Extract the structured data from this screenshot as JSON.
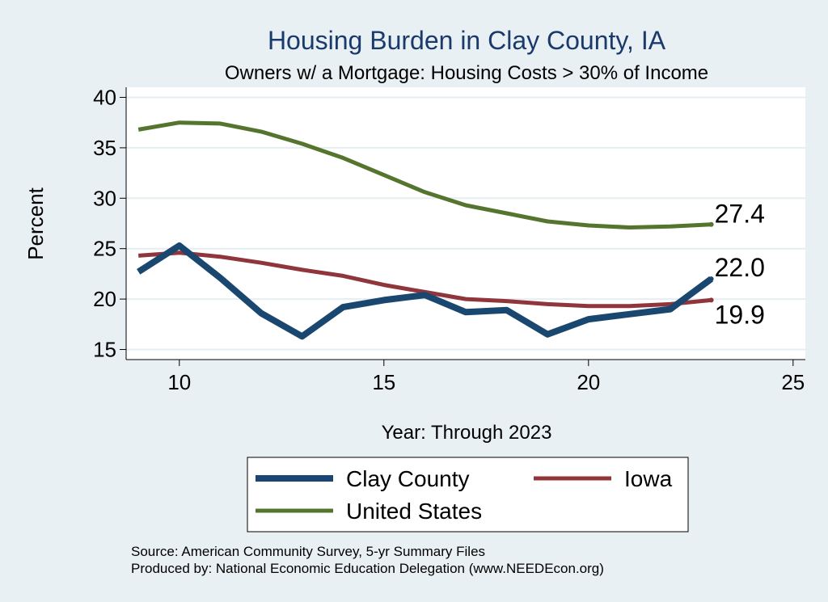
{
  "chart_data": {
    "type": "line",
    "title": "Housing Burden in Clay County, IA",
    "subtitle": "Owners w/ a Mortgage: Housing Costs > 30% of Income",
    "xlabel": "Year: Through 2023",
    "ylabel": "Percent",
    "xlim": [
      8.7,
      25.3
    ],
    "ylim": [
      14,
      41
    ],
    "xticks": [
      10,
      15,
      20,
      25
    ],
    "yticks": [
      15,
      20,
      25,
      30,
      35,
      40
    ],
    "grid": true,
    "legend_position": "bottom",
    "x": [
      9,
      10,
      11,
      12,
      13,
      14,
      15,
      16,
      17,
      18,
      19,
      20,
      21,
      22,
      23
    ],
    "series": [
      {
        "name": "Clay County",
        "color": "#1a476f",
        "width": 8,
        "end_label": "22.0",
        "values": [
          22.7,
          25.3,
          22.1,
          18.6,
          16.3,
          19.2,
          19.9,
          20.4,
          18.7,
          18.9,
          16.5,
          18.0,
          18.5,
          19.0,
          22.0
        ]
      },
      {
        "name": "Iowa",
        "color": "#90353b",
        "width": 5,
        "end_label": "19.9",
        "values": [
          24.3,
          24.6,
          24.2,
          23.6,
          22.9,
          22.3,
          21.4,
          20.7,
          20.0,
          19.8,
          19.5,
          19.3,
          19.3,
          19.5,
          19.9
        ]
      },
      {
        "name": "United States",
        "color": "#55752f",
        "width": 5,
        "end_label": "27.4",
        "values": [
          36.8,
          37.5,
          37.4,
          36.6,
          35.4,
          34.0,
          32.3,
          30.6,
          29.3,
          28.5,
          27.7,
          27.3,
          27.1,
          27.2,
          27.4
        ]
      }
    ]
  },
  "footer": {
    "source": "Source: American Community Survey, 5-yr Summary Files",
    "produced": "Produced by: National Economic Education Delegation (www.NEEDEcon.org)"
  }
}
